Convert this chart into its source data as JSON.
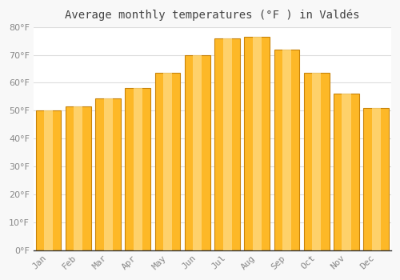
{
  "title": "Average monthly temperatures (°F ) in Valdés",
  "months": [
    "Jan",
    "Feb",
    "Mar",
    "Apr",
    "May",
    "Jun",
    "Jul",
    "Aug",
    "Sep",
    "Oct",
    "Nov",
    "Dec"
  ],
  "values": [
    50,
    51.5,
    54.5,
    58,
    63.5,
    70,
    76,
    76.5,
    72,
    63.5,
    56,
    51
  ],
  "bar_color": "#FDB827",
  "bar_edge_color": "#C8830A",
  "background_color": "#F8F8F8",
  "plot_bg_color": "#FFFFFF",
  "grid_color": "#DDDDDD",
  "text_color": "#888888",
  "title_color": "#444444",
  "ylim": [
    0,
    80
  ],
  "yticks": [
    0,
    10,
    20,
    30,
    40,
    50,
    60,
    70,
    80
  ],
  "title_fontsize": 10,
  "tick_fontsize": 8,
  "bar_width": 0.85
}
